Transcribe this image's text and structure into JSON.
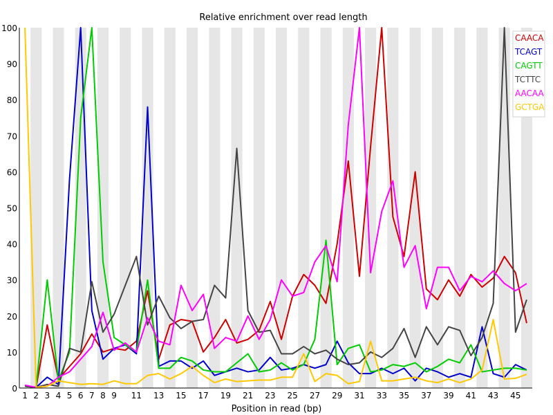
{
  "chart_data": {
    "type": "line",
    "title": "Relative enrichment over read length",
    "xlabel": "Position in read (bp)",
    "ylabel": "",
    "ylim": [
      0,
      100
    ],
    "yticks": [
      0,
      10,
      20,
      30,
      40,
      50,
      60,
      70,
      80,
      90,
      100
    ],
    "x": [
      1,
      2,
      3,
      4,
      5,
      6,
      7,
      8,
      9,
      10,
      11,
      12,
      13,
      14,
      15,
      16,
      17,
      18,
      19,
      20,
      21,
      22,
      23,
      24,
      25,
      26,
      27,
      28,
      29,
      30,
      31,
      32,
      33,
      34,
      35,
      36,
      37,
      38,
      39,
      40,
      41,
      42,
      43,
      44,
      45,
      46
    ],
    "xtick_labels": [
      "1",
      "2",
      "3",
      "4",
      "5",
      "6",
      "7",
      "8",
      "9",
      "11",
      "13",
      "15",
      "17",
      "19",
      "21",
      "23",
      "25",
      "27",
      "29",
      "31",
      "33",
      "35",
      "37",
      "39",
      "41",
      "43",
      "45"
    ],
    "xtick_positions": [
      1,
      2,
      3,
      4,
      5,
      6,
      7,
      8,
      9,
      11,
      13,
      15,
      17,
      19,
      21,
      23,
      25,
      27,
      29,
      31,
      33,
      35,
      37,
      39,
      41,
      43,
      45
    ],
    "striped_background": true,
    "legend_position": "top-right",
    "series": [
      {
        "name": "CAACA",
        "color": "#cc0000",
        "values": [
          0.5,
          0.2,
          17.5,
          2.5,
          6,
          9.5,
          15,
          10,
          11,
          10.5,
          13,
          27,
          8,
          17.5,
          19,
          18.5,
          10,
          14,
          19,
          12.5,
          13.5,
          16,
          24,
          13.5,
          25.5,
          31.5,
          28.5,
          23.5,
          40,
          63,
          31,
          67,
          100,
          47.5,
          36.5,
          60,
          27.5,
          24.5,
          30,
          25.5,
          31.5,
          28,
          30.5,
          36.5,
          32,
          18
        ]
      },
      {
        "name": "TCAGT",
        "color": "#0000cc",
        "values": [
          0.5,
          0.2,
          3,
          1,
          58,
          100,
          21.5,
          8,
          11,
          12,
          9.5,
          78,
          6,
          7.5,
          7.5,
          5.5,
          7.5,
          3.5,
          4.5,
          5.5,
          4.5,
          5,
          8.5,
          5,
          5.5,
          6.5,
          5.5,
          6.5,
          13,
          7,
          4,
          4,
          5.5,
          4,
          5.5,
          2,
          5.5,
          4.5,
          3,
          4,
          3,
          17,
          4,
          3,
          6.5,
          5
        ]
      },
      {
        "name": "CAGTT",
        "color": "#00cc00",
        "values": [
          0.5,
          0.2,
          30,
          2,
          10,
          75,
          100,
          35,
          14,
          12,
          10,
          30,
          5.5,
          5.5,
          8.5,
          7.5,
          5,
          4.5,
          4.5,
          7,
          9.5,
          4.5,
          5,
          7,
          5,
          6.5,
          13.5,
          41,
          6.5,
          11,
          12,
          4.5,
          5,
          6.5,
          6,
          7,
          4.5,
          6,
          8,
          7,
          12,
          4.5,
          5,
          5.5,
          5.5,
          5
        ]
      },
      {
        "name": "TCTTC",
        "color": "#444444",
        "values": [
          0.5,
          0.2,
          1,
          0.5,
          11,
          10,
          29.5,
          15.5,
          20.5,
          28.5,
          36.5,
          17.5,
          25.5,
          19.5,
          16.5,
          18.5,
          19,
          28.5,
          25,
          66.5,
          21.5,
          15.5,
          16,
          9.5,
          9.5,
          11.5,
          9.5,
          10.5,
          8,
          6.5,
          7,
          10,
          8.5,
          11,
          16.5,
          8.5,
          17,
          12,
          17,
          16,
          9,
          14,
          23.5,
          100,
          15.5,
          24.5
        ]
      },
      {
        "name": "AACAA",
        "color": "#ff00ff",
        "values": [
          0.8,
          0.2,
          0.5,
          3,
          4.5,
          8,
          11.5,
          21,
          10.5,
          12.5,
          10,
          19.5,
          13,
          12,
          28.5,
          21.5,
          26,
          11,
          14,
          13,
          20,
          13.5,
          19,
          30,
          25.5,
          26.5,
          35,
          39.5,
          29.5,
          73,
          100,
          32,
          49,
          57.5,
          33.5,
          39.5,
          22,
          33.5,
          33.5,
          27,
          31,
          29.5,
          32.5,
          29,
          27,
          29
        ]
      },
      {
        "name": "GCTGA",
        "color": "#ffc800",
        "values": [
          100,
          0.2,
          0.5,
          2,
          1.5,
          1,
          1.2,
          1,
          2,
          1.2,
          1.2,
          3.5,
          4,
          2.5,
          4,
          6,
          3.5,
          1.5,
          2.5,
          1.8,
          2,
          2.2,
          2.2,
          3,
          3,
          9.5,
          1.8,
          4,
          3.5,
          1.2,
          1.8,
          13,
          2,
          2,
          2.5,
          3,
          2,
          1.5,
          2.5,
          1.5,
          2.5,
          5,
          19,
          2.5,
          2.7,
          3.8
        ]
      }
    ]
  }
}
